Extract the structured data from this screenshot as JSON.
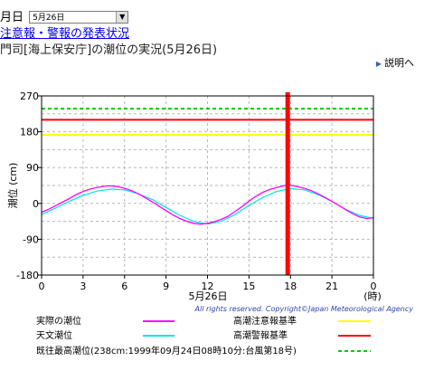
{
  "header": {
    "date_label": "月日",
    "date_select_value": "5月26日",
    "alert_link": "注意報・警報の発表状況",
    "subtitle": "門司[海上保安庁]の潮位の実況(5月26日)",
    "help_link": "説明へ"
  },
  "colors": {
    "actual": "#ff00ff",
    "astronomical": "#00e5e5",
    "caution": "#ffff00",
    "warning": "#ff0000",
    "record": "#00cc00",
    "now": "#ff0000"
  },
  "chart_data": {
    "type": "line",
    "ylabel": "潮位 (cm)",
    "xlabel": "5月26日",
    "xunit": "(時)",
    "xlim": [
      0,
      24
    ],
    "ylim": [
      -180,
      270
    ],
    "x_ticks": [
      "0",
      "3",
      "6",
      "9",
      "12",
      "15",
      "18",
      "21",
      "0"
    ],
    "y_ticks": [
      "270",
      "180",
      "90",
      "0",
      "-90",
      "-180"
    ],
    "copyright": "All rights reserved. Copyright©Japan Meteorological Agency",
    "current_time": 17.8,
    "reference_lines": [
      {
        "name": "高潮注意報基準",
        "value": 172,
        "color": "#ffff00",
        "style": "solid"
      },
      {
        "name": "高潮警報基準",
        "value": 210,
        "color": "#ff0000",
        "style": "solid"
      },
      {
        "name": "既往最高潮位",
        "value": 238,
        "color": "#00cc00",
        "style": "dashed"
      }
    ],
    "series": [
      {
        "name": "実際の潮位",
        "color": "#ff00ff",
        "x": [
          0,
          0.5,
          1,
          1.5,
          2,
          2.5,
          3,
          3.5,
          4,
          4.5,
          5,
          5.5,
          6,
          6.5,
          7,
          7.5,
          8,
          8.5,
          9,
          9.5,
          10,
          10.5,
          11,
          11.5,
          12,
          12.5,
          13,
          13.5,
          14,
          14.5,
          15,
          15.5,
          16,
          16.5,
          17,
          17.5,
          17.8
        ],
        "y": [
          -22,
          -15,
          -6,
          3,
          12,
          22,
          30,
          36,
          40,
          43,
          44,
          42,
          38,
          32,
          24,
          14,
          4,
          -7,
          -18,
          -29,
          -38,
          -45,
          -50,
          -52,
          -50,
          -46,
          -40,
          -32,
          -20,
          -8,
          6,
          18,
          28,
          35,
          40,
          44,
          47
        ]
      },
      {
        "name": "天文潮位",
        "color": "#00e5e5",
        "x": [
          0,
          1,
          2,
          3,
          4,
          5,
          6,
          7,
          8,
          9,
          10,
          11,
          12,
          13,
          14,
          15,
          16,
          17,
          18,
          19,
          20,
          21,
          22,
          23,
          24
        ],
        "y": [
          -28,
          -12,
          5,
          20,
          31,
          36,
          34,
          24,
          10,
          -10,
          -30,
          -45,
          -52,
          -45,
          -28,
          -5,
          15,
          30,
          37,
          34,
          22,
          5,
          -15,
          -30,
          -38
        ]
      }
    ],
    "forecast_actual": {
      "x": [
        17.8,
        18.5,
        19,
        19.5,
        20,
        20.5,
        21,
        21.5,
        22,
        22.5,
        23,
        23.5,
        24
      ],
      "y": [
        47,
        42,
        38,
        32,
        24,
        15,
        5,
        -5,
        -16,
        -26,
        -34,
        -38,
        -36
      ]
    },
    "legend": [
      {
        "label": "実際の潮位",
        "color": "#ff00ff",
        "style": "solid"
      },
      {
        "label": "高潮注意報基準",
        "color": "#ffff00",
        "style": "solid"
      },
      {
        "label": "天文潮位",
        "color": "#00e5e5",
        "style": "solid"
      },
      {
        "label": "高潮警報基準",
        "color": "#ff0000",
        "style": "solid"
      },
      {
        "label": "既往最高潮位(238cm:1999年09月24日08時10分:台風第18号)",
        "color": "#00cc00",
        "style": "dashed"
      }
    ]
  }
}
